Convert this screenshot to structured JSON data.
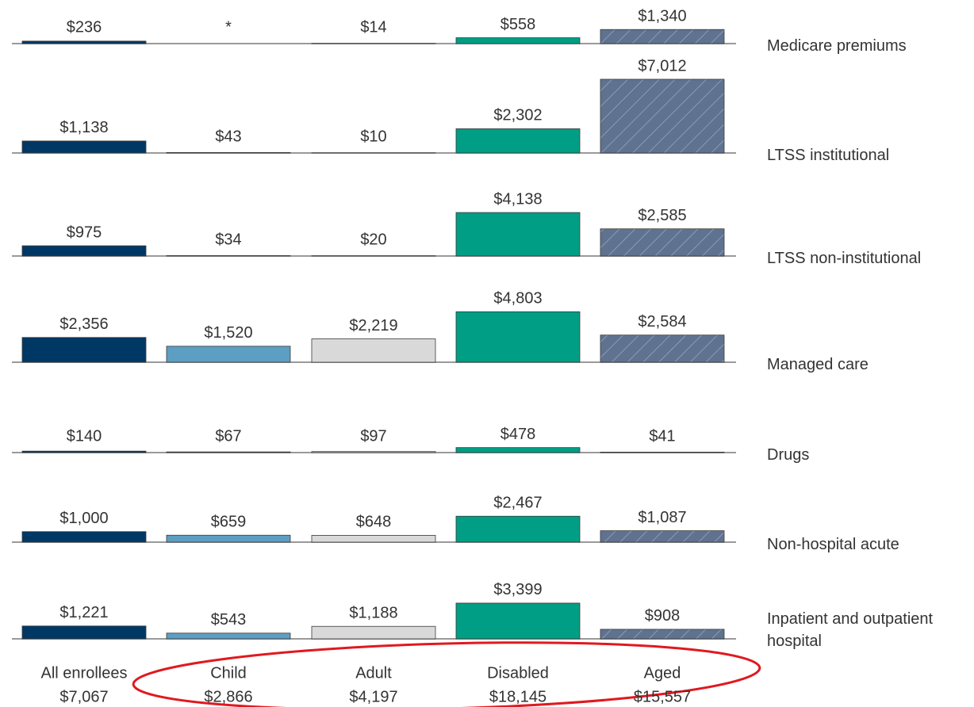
{
  "chart_data": {
    "type": "bar-small-multiples",
    "categories": [
      "All enrollees",
      "Child",
      "Adult",
      "Disabled",
      "Aged"
    ],
    "category_totals": [
      "$7,067",
      "$2,866",
      "$4,197",
      "$18,145",
      "$15,557"
    ],
    "colors": [
      "#003865",
      "#5d9ec3",
      "#d9d9d9",
      "#009e84",
      "#5f7290"
    ],
    "hatched": [
      false,
      false,
      false,
      false,
      true
    ],
    "series": [
      {
        "name": "Medicare premiums",
        "values": [
          236,
          null,
          14,
          558,
          1340
        ],
        "value_labels": [
          "$236",
          "*",
          "$14",
          "$558",
          "$1,340"
        ]
      },
      {
        "name": "LTSS institutional",
        "values": [
          1138,
          43,
          10,
          2302,
          7012
        ],
        "value_labels": [
          "$1,138",
          "$43",
          "$10",
          "$2,302",
          "$7,012"
        ]
      },
      {
        "name": "LTSS non-institutional",
        "values": [
          975,
          34,
          20,
          4138,
          2585
        ],
        "value_labels": [
          "$975",
          "$34",
          "$20",
          "$4,138",
          "$2,585"
        ]
      },
      {
        "name": "Managed care",
        "values": [
          2356,
          1520,
          2219,
          4803,
          2584
        ],
        "value_labels": [
          "$2,356",
          "$1,520",
          "$2,219",
          "$4,803",
          "$2,584"
        ]
      },
      {
        "name": "Drugs",
        "values": [
          140,
          67,
          97,
          478,
          41
        ],
        "value_labels": [
          "$140",
          "$67",
          "$97",
          "$478",
          "$41"
        ]
      },
      {
        "name": "Non-hospital acute",
        "values": [
          1000,
          659,
          648,
          2467,
          1087
        ],
        "value_labels": [
          "$1,000",
          "$659",
          "$648",
          "$2,467",
          "$1,087"
        ]
      },
      {
        "name": "Inpatient and outpatient hospital",
        "values": [
          1221,
          543,
          1188,
          3399,
          908
        ],
        "value_labels": [
          "$1,221",
          "$543",
          "$1,188",
          "$3,399",
          "$908"
        ]
      }
    ]
  }
}
